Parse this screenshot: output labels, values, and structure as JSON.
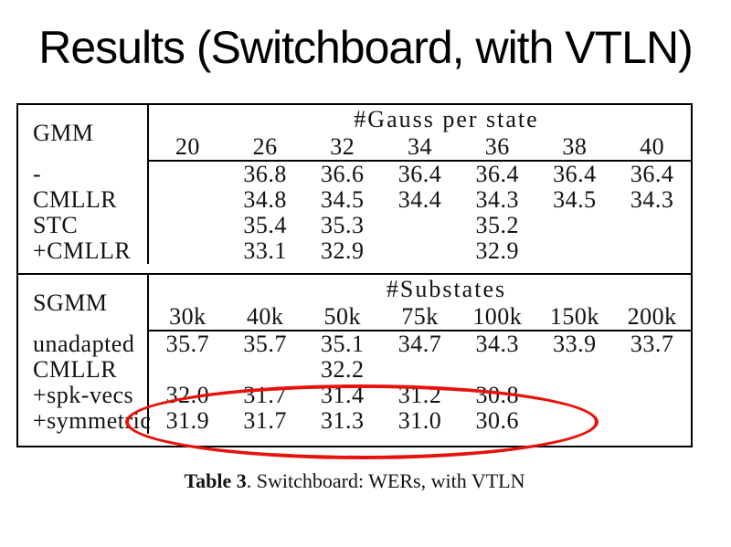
{
  "slide": {
    "title": "Results (Switchboard, with VTLN)"
  },
  "caption": {
    "label": "Table 3",
    "rest": ". Switchboard: WERs, with VTLN"
  },
  "annotation": {
    "highlight_color": "#e8120c",
    "shape": "red-ellipse"
  },
  "table": {
    "gmm": {
      "label": "GMM",
      "header": "#Gauss per state",
      "columns": [
        "20",
        "26",
        "32",
        "34",
        "36",
        "38",
        "40"
      ],
      "rows": [
        {
          "label": "-",
          "values": [
            "",
            "36.8",
            "36.6",
            "36.4",
            "36.4",
            "36.4",
            "36.4"
          ]
        },
        {
          "label": "CMLLR",
          "values": [
            "",
            "34.8",
            "34.5",
            "34.4",
            "34.3",
            "34.5",
            "34.3"
          ]
        },
        {
          "label": "STC",
          "values": [
            "",
            "35.4",
            "35.3",
            "",
            "35.2",
            "",
            ""
          ]
        },
        {
          "label": "+CMLLR",
          "values": [
            "",
            "33.1",
            "32.9",
            "",
            "32.9",
            "",
            ""
          ]
        }
      ]
    },
    "sgmm": {
      "label": "SGMM",
      "header": "#Substates",
      "columns": [
        "30k",
        "40k",
        "50k",
        "75k",
        "100k",
        "150k",
        "200k"
      ],
      "rows": [
        {
          "label": "unadapted",
          "values": [
            "35.7",
            "35.7",
            "35.1",
            "34.7",
            "34.3",
            "33.9",
            "33.7"
          ]
        },
        {
          "label": "CMLLR",
          "values": [
            "",
            "",
            "32.2",
            "",
            "",
            "",
            ""
          ]
        },
        {
          "label": "+spk-vecs",
          "values": [
            "32.0",
            "31.7",
            "31.4",
            "31.2",
            "30.8",
            "",
            ""
          ]
        },
        {
          "label": "+symmetric",
          "values": [
            "31.9",
            "31.7",
            "31.3",
            "31.0",
            "30.6",
            "",
            ""
          ]
        }
      ]
    }
  }
}
